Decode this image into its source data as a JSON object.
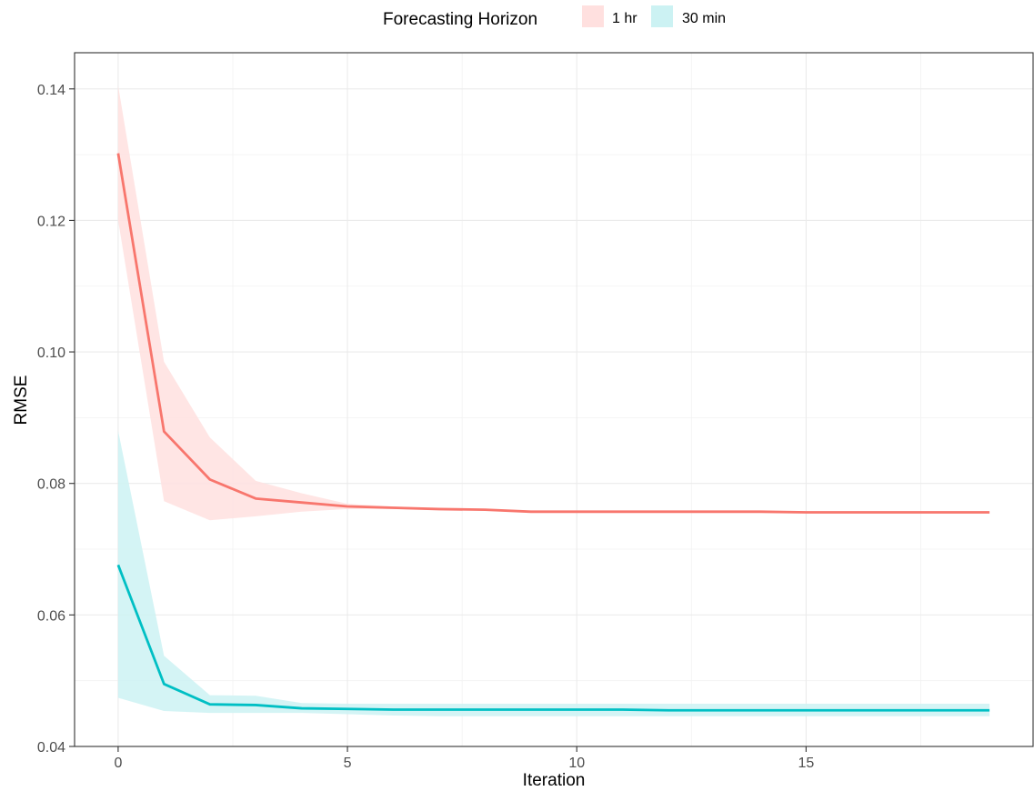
{
  "chart_data": {
    "type": "line",
    "title": "",
    "xlabel": "Iteration",
    "ylabel": "RMSE",
    "xlim": [
      -0.95,
      19.95
    ],
    "ylim": [
      0.04,
      0.1455
    ],
    "x_ticks": [
      0,
      5,
      10,
      15
    ],
    "x_tick_labels": [
      "0",
      "5",
      "10",
      "15"
    ],
    "y_ticks": [
      0.04,
      0.06,
      0.08,
      0.1,
      0.12,
      0.14
    ],
    "y_tick_labels": [
      "0.04",
      "0.06",
      "0.08",
      "0.10",
      "0.12",
      "0.14"
    ],
    "grid": true,
    "legend": {
      "title": "Forecasting Horizon",
      "position": "top",
      "entries": [
        "1 hr",
        "30 min"
      ]
    },
    "x": [
      0,
      1,
      2,
      3,
      4,
      5,
      6,
      7,
      8,
      9,
      10,
      11,
      12,
      13,
      14,
      15,
      16,
      17,
      18,
      19
    ],
    "series": [
      {
        "name": "1 hr",
        "color": "#F8766D",
        "values": [
          0.1302,
          0.0879,
          0.0806,
          0.0777,
          0.0771,
          0.0765,
          0.0763,
          0.0761,
          0.076,
          0.0757,
          0.0757,
          0.0757,
          0.0757,
          0.0757,
          0.0757,
          0.0756,
          0.0756,
          0.0756,
          0.0756,
          0.0756
        ],
        "lower": [
          0.12,
          0.0773,
          0.0744,
          0.075,
          0.0757,
          0.0761,
          0.0761,
          0.076,
          0.0759,
          0.0756,
          0.0756,
          0.0756,
          0.0756,
          0.0756,
          0.0756,
          0.0755,
          0.0755,
          0.0755,
          0.0755,
          0.0755
        ],
        "upper": [
          0.1405,
          0.0985,
          0.087,
          0.0804,
          0.0785,
          0.0769,
          0.0765,
          0.0762,
          0.0761,
          0.0758,
          0.0758,
          0.0758,
          0.0758,
          0.0758,
          0.0758,
          0.0757,
          0.0757,
          0.0757,
          0.0757,
          0.0757
        ]
      },
      {
        "name": "30 min",
        "color": "#00BFC4",
        "values": [
          0.0676,
          0.0495,
          0.0464,
          0.0463,
          0.0458,
          0.0457,
          0.0456,
          0.0456,
          0.0456,
          0.0456,
          0.0456,
          0.0456,
          0.0455,
          0.0455,
          0.0455,
          0.0455,
          0.0455,
          0.0455,
          0.0455,
          0.0455
        ],
        "lower": [
          0.0474,
          0.0454,
          0.0451,
          0.0451,
          0.0451,
          0.0449,
          0.0447,
          0.0446,
          0.0446,
          0.0446,
          0.0446,
          0.0446,
          0.0446,
          0.0446,
          0.0446,
          0.0446,
          0.0446,
          0.0446,
          0.0446,
          0.0446
        ],
        "upper": [
          0.088,
          0.0538,
          0.0478,
          0.0477,
          0.0466,
          0.0465,
          0.0465,
          0.0465,
          0.0465,
          0.0465,
          0.0465,
          0.0465,
          0.0465,
          0.0465,
          0.0465,
          0.0465,
          0.0465,
          0.0465,
          0.0465,
          0.0465
        ]
      }
    ]
  }
}
